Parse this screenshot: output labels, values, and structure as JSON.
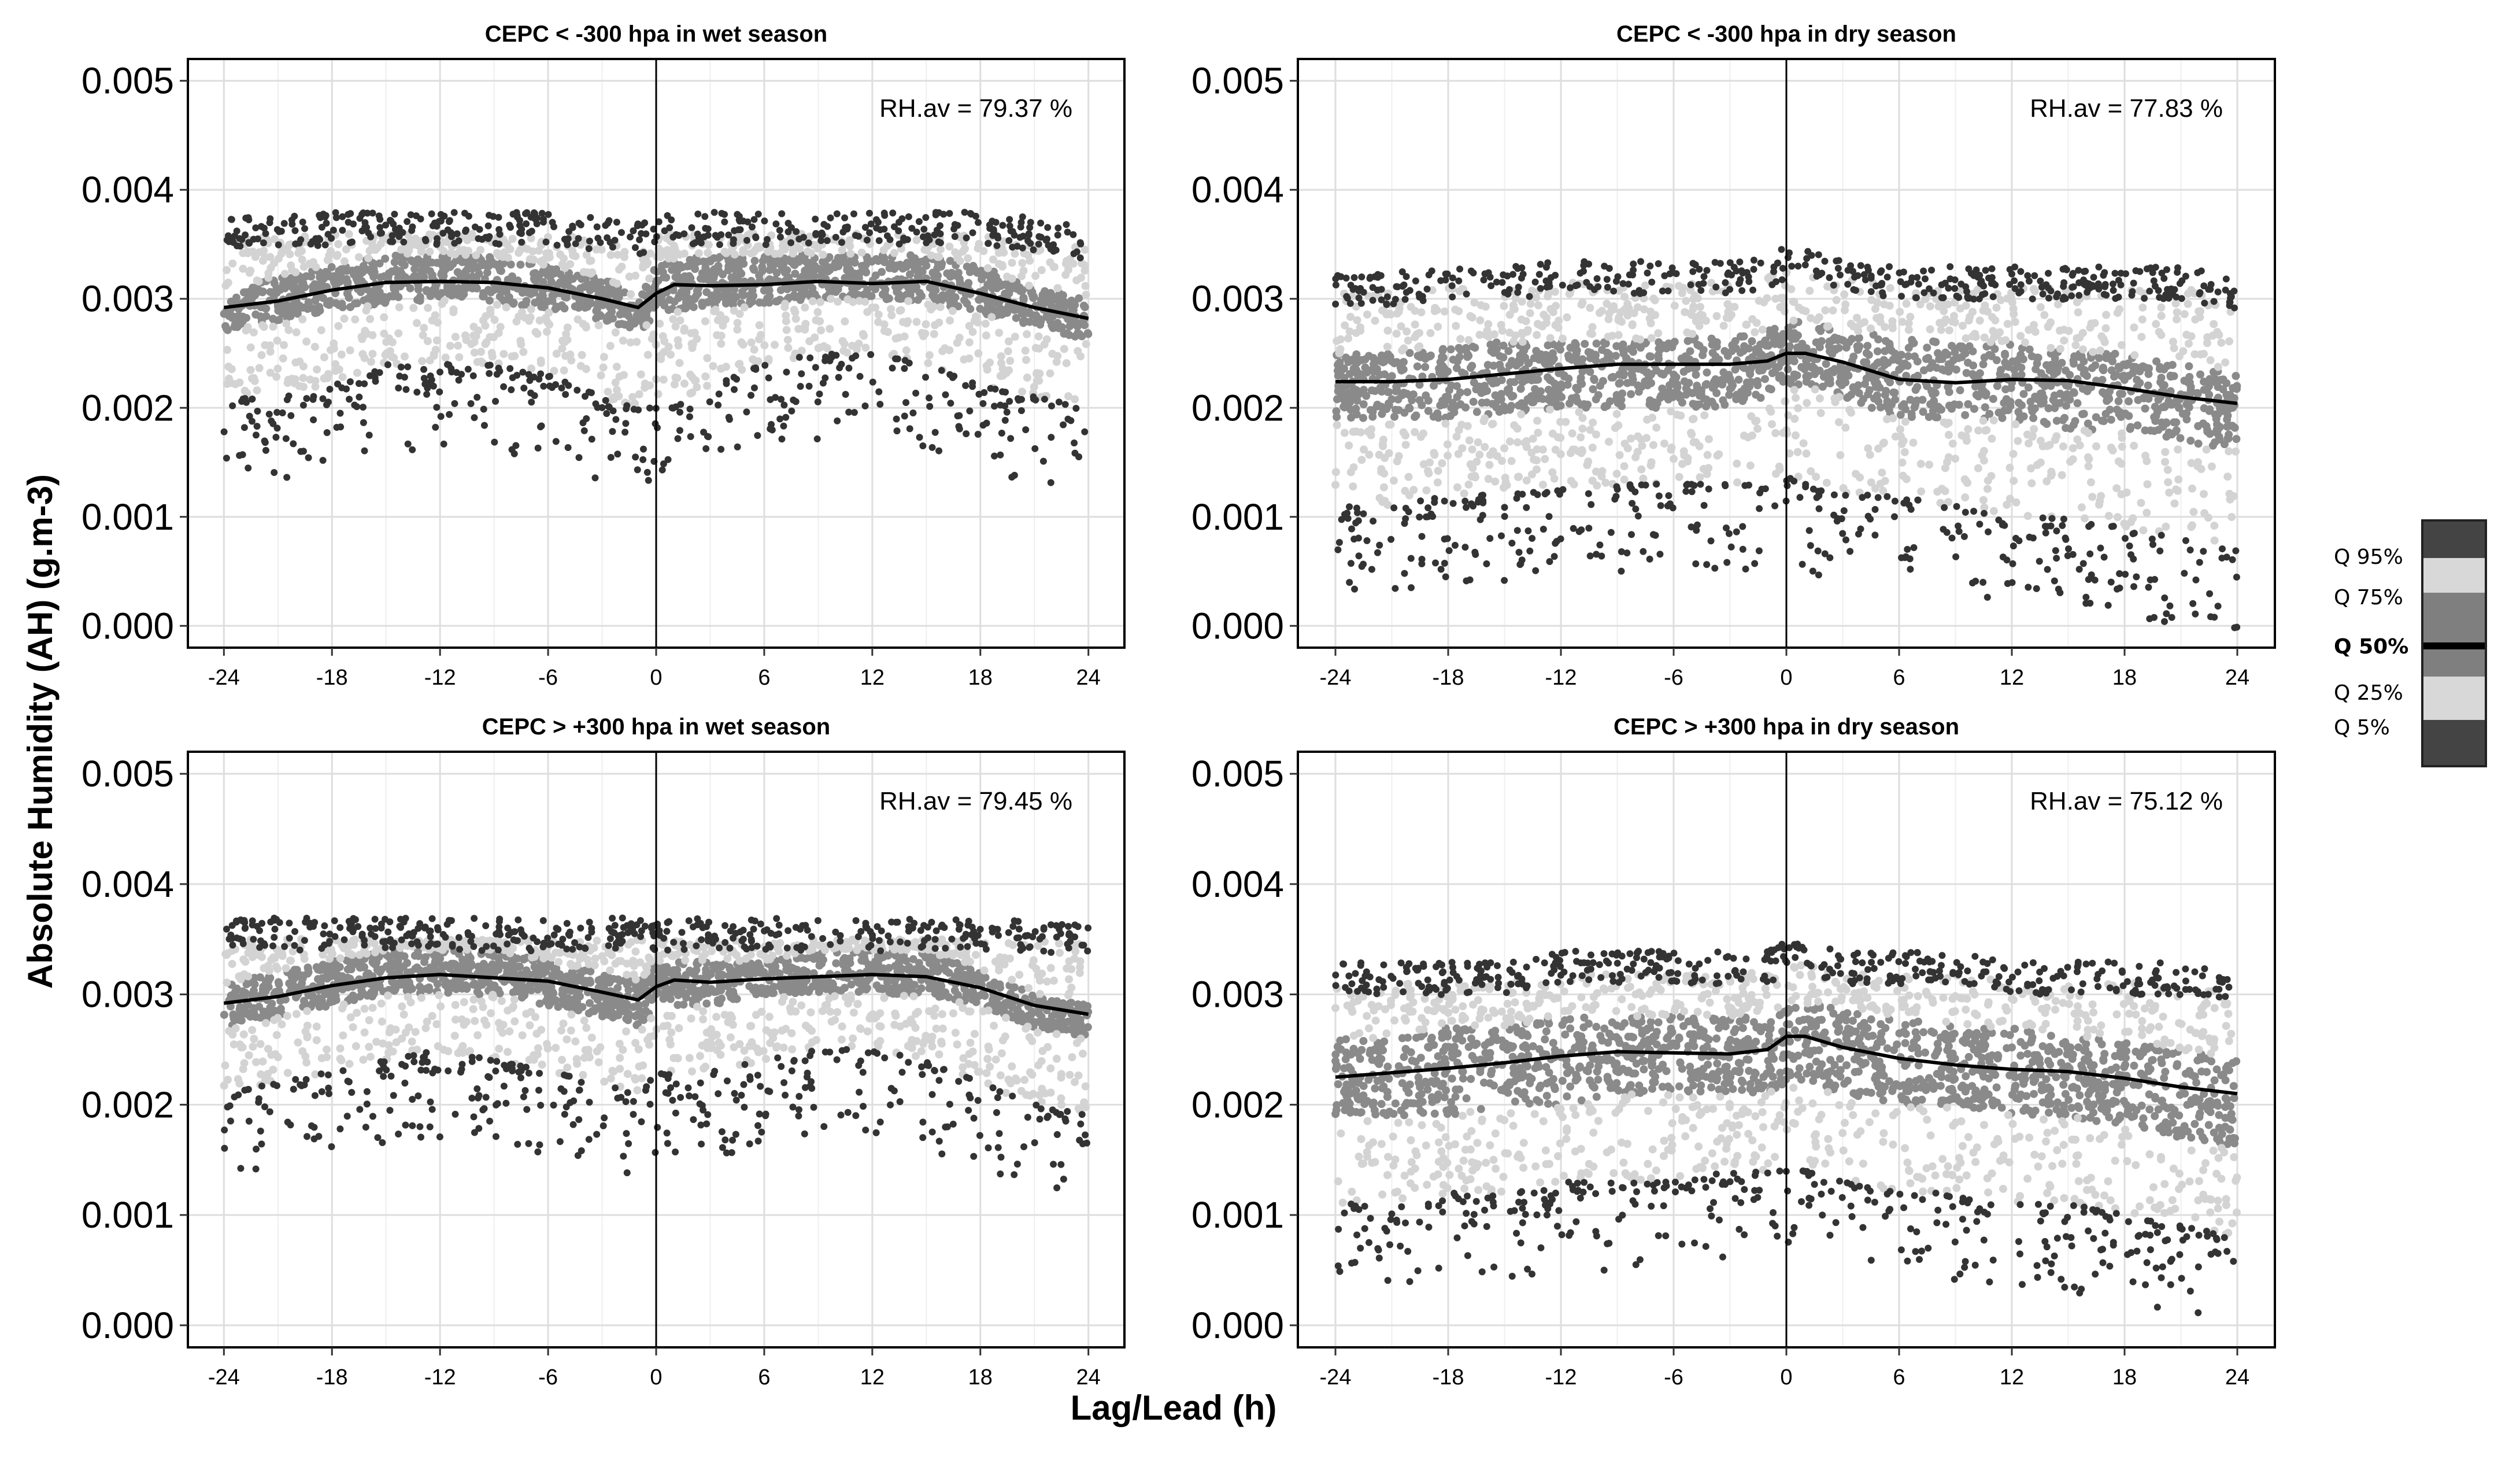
{
  "figure": {
    "xlabel": "Lag/Lead (h)",
    "ylabel": "Absolute Humidity (AH) (g.m-3)"
  },
  "colors": {
    "outer_points": "#333333",
    "band_light": "#d3d3d3",
    "band_dark": "#8a8a8a",
    "median_line": "#000000",
    "grid": "#dedede",
    "frame": "#000000"
  },
  "legend": {
    "labels": [
      "Q 95%",
      "Q 75%",
      "Q 50%",
      "Q 25%",
      "Q 5%"
    ]
  },
  "chart_data": [
    {
      "type": "scatter",
      "title": "CEPC < -300 hpa in wet season",
      "annotation": "RH.av = 79.37 %",
      "xlim": [
        -26,
        26
      ],
      "ylim": [
        -0.0002,
        0.0052
      ],
      "xticks": [
        "-24",
        "-18",
        "-12",
        "-6",
        "0",
        "6",
        "12",
        "18",
        "24"
      ],
      "yticks": [
        "0.000",
        "0.001",
        "0.002",
        "0.003",
        "0.004",
        "0.005"
      ],
      "x": [
        -24,
        -21,
        -18,
        -15,
        -12,
        -9,
        -6,
        -3,
        -1,
        0,
        1,
        3,
        6,
        9,
        12,
        15,
        18,
        21,
        24
      ],
      "series": [
        {
          "name": "Q 95%",
          "values": [
            0.00355,
            0.00357,
            0.0036,
            0.0036,
            0.0036,
            0.0036,
            0.0036,
            0.00355,
            0.0035,
            0.00358,
            0.0036,
            0.0036,
            0.0036,
            0.0036,
            0.0036,
            0.0036,
            0.0036,
            0.00355,
            0.00345
          ]
        },
        {
          "name": "Q 75%",
          "values": [
            0.00305,
            0.0032,
            0.0033,
            0.0034,
            0.0034,
            0.0034,
            0.0033,
            0.0032,
            0.003,
            0.0033,
            0.00335,
            0.0034,
            0.0034,
            0.0034,
            0.0034,
            0.0034,
            0.0033,
            0.0031,
            0.003
          ]
        },
        {
          "name": "Q 50%",
          "values": [
            0.00292,
            0.00298,
            0.00308,
            0.00315,
            0.00316,
            0.00315,
            0.0031,
            0.003,
            0.00292,
            0.00305,
            0.00313,
            0.00312,
            0.00313,
            0.00316,
            0.00314,
            0.00316,
            0.00305,
            0.00292,
            0.00282
          ]
        },
        {
          "name": "Q 25%",
          "values": [
            0.0027,
            0.0028,
            0.0029,
            0.00295,
            0.003,
            0.00298,
            0.0029,
            0.0028,
            0.0027,
            0.00283,
            0.0029,
            0.00293,
            0.00296,
            0.003,
            0.003,
            0.00297,
            0.00287,
            0.00275,
            0.00262
          ]
        },
        {
          "name": "Q 5%",
          "values": [
            0.0021,
            0.0021,
            0.0022,
            0.0024,
            0.0024,
            0.0024,
            0.0023,
            0.0021,
            0.002,
            0.002,
            0.002,
            0.0022,
            0.0024,
            0.0025,
            0.0025,
            0.0024,
            0.0022,
            0.0021,
            0.002
          ]
        }
      ]
    },
    {
      "type": "scatter",
      "title": "CEPC < -300 hpa in dry season",
      "annotation": "RH.av = 77.83 %",
      "xlim": [
        -26,
        26
      ],
      "ylim": [
        -0.0002,
        0.0052
      ],
      "xticks": [
        "-24",
        "-18",
        "-12",
        "-6",
        "0",
        "6",
        "12",
        "18",
        "24"
      ],
      "yticks": [
        "0.000",
        "0.001",
        "0.002",
        "0.003",
        "0.004",
        "0.005"
      ],
      "x": [
        -24,
        -21,
        -18,
        -15,
        -12,
        -9,
        -6,
        -3,
        -1,
        0,
        1,
        3,
        6,
        9,
        12,
        15,
        18,
        21,
        24
      ],
      "series": [
        {
          "name": "Q 95%",
          "values": [
            0.00305,
            0.00305,
            0.0031,
            0.0031,
            0.00315,
            0.00315,
            0.00315,
            0.00315,
            0.0032,
            0.0033,
            0.0033,
            0.0032,
            0.0031,
            0.0031,
            0.0031,
            0.0031,
            0.0031,
            0.0031,
            0.003
          ]
        },
        {
          "name": "Q 75%",
          "values": [
            0.0025,
            0.0025,
            0.0026,
            0.0026,
            0.0026,
            0.0026,
            0.00265,
            0.00265,
            0.0027,
            0.0028,
            0.0028,
            0.0027,
            0.00265,
            0.0026,
            0.0026,
            0.0025,
            0.0025,
            0.0024,
            0.0023
          ]
        },
        {
          "name": "Q 50%",
          "values": [
            0.00224,
            0.00224,
            0.00226,
            0.00231,
            0.00236,
            0.0024,
            0.0024,
            0.0024,
            0.00243,
            0.0025,
            0.0025,
            0.00242,
            0.00226,
            0.00223,
            0.00226,
            0.00225,
            0.00218,
            0.0021,
            0.00204
          ]
        },
        {
          "name": "Q 25%",
          "values": [
            0.0019,
            0.0019,
            0.0019,
            0.00195,
            0.002,
            0.002,
            0.002,
            0.002,
            0.0021,
            0.0022,
            0.0022,
            0.0021,
            0.0019,
            0.0019,
            0.0019,
            0.0018,
            0.0018,
            0.0017,
            0.0016
          ]
        },
        {
          "name": "Q 5%",
          "values": [
            0.0011,
            0.0011,
            0.0012,
            0.0012,
            0.00125,
            0.0013,
            0.0013,
            0.0013,
            0.0013,
            0.0014,
            0.0013,
            0.0012,
            0.0012,
            0.0011,
            0.001,
            0.001,
            0.0009,
            0.0008,
            0.0007
          ]
        }
      ]
    },
    {
      "type": "scatter",
      "title": "CEPC > +300 hpa in wet season",
      "annotation": "RH.av = 79.45 %",
      "xlim": [
        -26,
        26
      ],
      "ylim": [
        -0.0002,
        0.0052
      ],
      "xticks": [
        "-24",
        "-18",
        "-12",
        "-6",
        "0",
        "6",
        "12",
        "18",
        "24"
      ],
      "yticks": [
        "0.000",
        "0.001",
        "0.002",
        "0.003",
        "0.004",
        "0.005"
      ],
      "x": [
        -24,
        -21,
        -18,
        -15,
        -12,
        -9,
        -6,
        -3,
        -1,
        0,
        1,
        3,
        6,
        9,
        12,
        15,
        18,
        21,
        24
      ],
      "series": [
        {
          "name": "Q 95%",
          "values": [
            0.0035,
            0.0035,
            0.0035,
            0.0035,
            0.0035,
            0.0035,
            0.0035,
            0.0035,
            0.0035,
            0.0035,
            0.0035,
            0.0035,
            0.0035,
            0.0035,
            0.0035,
            0.0035,
            0.0035,
            0.0035,
            0.00345
          ]
        },
        {
          "name": "Q 75%",
          "values": [
            0.0031,
            0.0032,
            0.0033,
            0.0034,
            0.0034,
            0.0034,
            0.0033,
            0.0032,
            0.0031,
            0.0033,
            0.0033,
            0.0033,
            0.0033,
            0.0034,
            0.0034,
            0.0034,
            0.0032,
            0.003,
            0.0029
          ]
        },
        {
          "name": "Q 50%",
          "values": [
            0.00292,
            0.00298,
            0.00308,
            0.00315,
            0.00318,
            0.00315,
            0.00312,
            0.00302,
            0.00295,
            0.00307,
            0.00313,
            0.00311,
            0.00314,
            0.00316,
            0.00318,
            0.00316,
            0.00306,
            0.0029,
            0.00282
          ]
        },
        {
          "name": "Q 25%",
          "values": [
            0.0027,
            0.0028,
            0.0029,
            0.003,
            0.003,
            0.003,
            0.0029,
            0.0028,
            0.0027,
            0.0029,
            0.0029,
            0.0029,
            0.003,
            0.003,
            0.003,
            0.003,
            0.0029,
            0.0027,
            0.0026
          ]
        },
        {
          "name": "Q 5%",
          "values": [
            0.0021,
            0.0022,
            0.0023,
            0.0024,
            0.0025,
            0.0024,
            0.0023,
            0.0022,
            0.0021,
            0.0023,
            0.0023,
            0.0023,
            0.0024,
            0.0025,
            0.0025,
            0.0024,
            0.0022,
            0.002,
            0.0019
          ]
        }
      ]
    },
    {
      "type": "scatter",
      "title": "CEPC >  +300 hpa in dry season",
      "annotation": "RH.av = 75.12 %",
      "xlim": [
        -26,
        26
      ],
      "ylim": [
        -0.0002,
        0.0052
      ],
      "xticks": [
        "-24",
        "-18",
        "-12",
        "-6",
        "0",
        "6",
        "12",
        "18",
        "24"
      ],
      "yticks": [
        "0.000",
        "0.001",
        "0.002",
        "0.003",
        "0.004",
        "0.005"
      ],
      "x": [
        -24,
        -21,
        -18,
        -15,
        -12,
        -9,
        -6,
        -3,
        -1,
        0,
        1,
        3,
        6,
        9,
        12,
        15,
        18,
        21,
        24
      ],
      "series": [
        {
          "name": "Q 95%",
          "values": [
            0.0031,
            0.0031,
            0.0031,
            0.0031,
            0.0032,
            0.0032,
            0.0032,
            0.0032,
            0.0032,
            0.0033,
            0.0033,
            0.0032,
            0.0032,
            0.0032,
            0.0031,
            0.0031,
            0.0031,
            0.0031,
            0.003
          ]
        },
        {
          "name": "Q 75%",
          "values": [
            0.0026,
            0.0026,
            0.0027,
            0.0027,
            0.0028,
            0.0028,
            0.0028,
            0.0028,
            0.0028,
            0.0029,
            0.0029,
            0.0029,
            0.0028,
            0.0027,
            0.0027,
            0.0026,
            0.0026,
            0.0025,
            0.0024
          ]
        },
        {
          "name": "Q 50%",
          "values": [
            0.00225,
            0.00229,
            0.00233,
            0.00238,
            0.00244,
            0.00248,
            0.00247,
            0.00246,
            0.0025,
            0.00262,
            0.00262,
            0.00252,
            0.00242,
            0.00236,
            0.00232,
            0.0023,
            0.00224,
            0.00216,
            0.0021
          ]
        },
        {
          "name": "Q 25%",
          "values": [
            0.0019,
            0.0019,
            0.0019,
            0.002,
            0.002,
            0.0021,
            0.0021,
            0.0021,
            0.0021,
            0.0022,
            0.0022,
            0.0021,
            0.002,
            0.002,
            0.0019,
            0.0019,
            0.0018,
            0.0017,
            0.0016
          ]
        },
        {
          "name": "Q 5%",
          "values": [
            0.0011,
            0.0011,
            0.0012,
            0.0012,
            0.0013,
            0.0013,
            0.0013,
            0.0014,
            0.0014,
            0.0014,
            0.0014,
            0.0013,
            0.0012,
            0.0012,
            0.0011,
            0.0011,
            0.001,
            0.0009,
            0.0008
          ]
        }
      ]
    }
  ]
}
